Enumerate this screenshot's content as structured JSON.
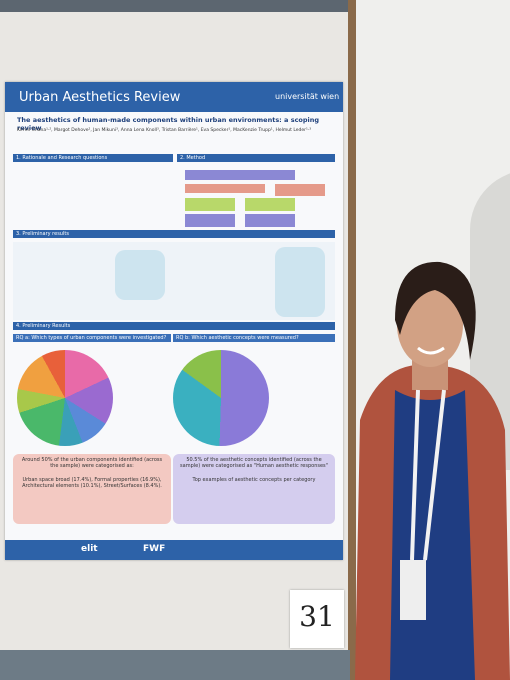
{
  "poster": {
    "title": "Urban Aesthetics Review",
    "university": "universität wien",
    "subtitle": "The aesthetics of human-made components within urban environments: a scoping review",
    "authors": "Kirren Chana¹·², Margot Dehove², Jan Mikuni³, Anna Lena Knoll³, Tristan Barrière¹, Eva Specker¹, MacKenzie Trupp¹, Helmut Leder¹·³",
    "sections": [
      "1. Rationale and Research questions",
      "2. Method",
      "3. Preliminary results",
      "4. Preliminary Results"
    ],
    "rq_a": "RQ a: Which types of urban components were investigated?",
    "rq_b": "RQ b: Which aesthetic concepts were measured?",
    "summary_a": "Around 50% of the urban components identified (across the sample) were categorised as:",
    "detail_a": "Urban space broad (17.4%), Formal properties (16.9%), Architectural elements (10.1%), Street/Surfaces (8.4%).",
    "summary_b": "50.5% of the aesthetic concepts identified (across the sample) were categorised as \"Human aesthetic responses\"",
    "top_b": "Top examples of aesthetic concepts per category",
    "logos": [
      "elit",
      "FWF"
    ]
  },
  "card": {
    "number": "31"
  }
}
